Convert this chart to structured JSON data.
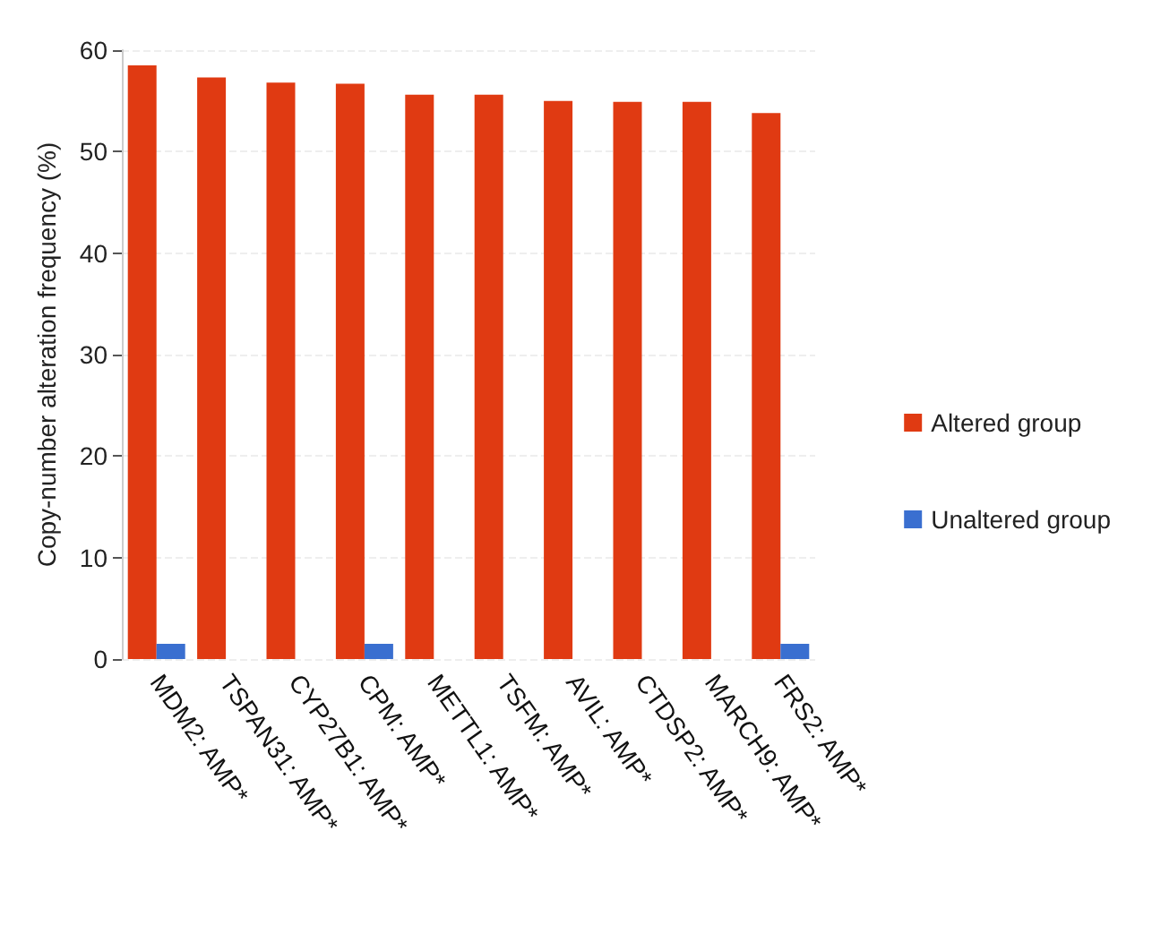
{
  "chart_data": {
    "type": "bar",
    "ylabel": "Copy-number alteration frequency (%)",
    "categories": [
      "MDM2: AMP*",
      "TSPAN31: AMP*",
      "CYP27B1: AMP*",
      "CPM: AMP*",
      "METTL1: AMP*",
      "TSFM: AMP*",
      "AVIL: AMP*",
      "CTDSP2: AMP*",
      "MARCH9: AMP*",
      "FRS2: AMP*"
    ],
    "series": [
      {
        "name": "Altered group",
        "color": "#e03a12",
        "values": [
          58.5,
          57.3,
          56.8,
          56.7,
          55.6,
          55.6,
          55.0,
          54.9,
          54.9,
          53.8
        ]
      },
      {
        "name": "Unaltered group",
        "color": "#3a6fd0",
        "values": [
          1.5,
          0,
          0,
          1.5,
          0,
          0,
          0,
          0,
          0,
          1.5
        ]
      }
    ],
    "ylim": [
      0,
      60
    ],
    "yticks": [
      0,
      10,
      20,
      30,
      40,
      50,
      60
    ],
    "grid": "y",
    "legend": "right"
  }
}
